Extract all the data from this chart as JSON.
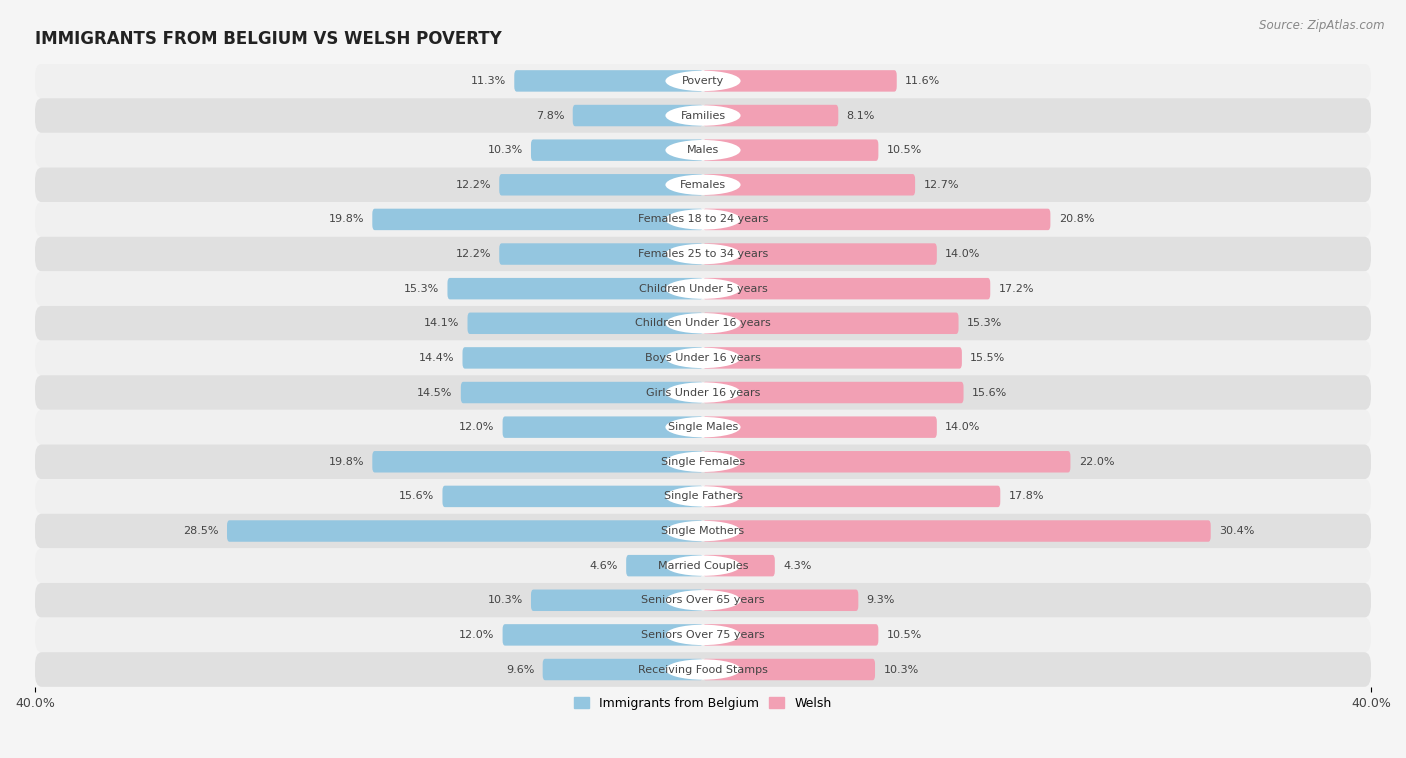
{
  "title": "IMMIGRANTS FROM BELGIUM VS WELSH POVERTY",
  "source": "Source: ZipAtlas.com",
  "categories": [
    "Poverty",
    "Families",
    "Males",
    "Females",
    "Females 18 to 24 years",
    "Females 25 to 34 years",
    "Children Under 5 years",
    "Children Under 16 years",
    "Boys Under 16 years",
    "Girls Under 16 years",
    "Single Males",
    "Single Females",
    "Single Fathers",
    "Single Mothers",
    "Married Couples",
    "Seniors Over 65 years",
    "Seniors Over 75 years",
    "Receiving Food Stamps"
  ],
  "belgium_values": [
    11.3,
    7.8,
    10.3,
    12.2,
    19.8,
    12.2,
    15.3,
    14.1,
    14.4,
    14.5,
    12.0,
    19.8,
    15.6,
    28.5,
    4.6,
    10.3,
    12.0,
    9.6
  ],
  "welsh_values": [
    11.6,
    8.1,
    10.5,
    12.7,
    20.8,
    14.0,
    17.2,
    15.3,
    15.5,
    15.6,
    14.0,
    22.0,
    17.8,
    30.4,
    4.3,
    9.3,
    10.5,
    10.3
  ],
  "belgium_color": "#94C6E0",
  "welsh_color": "#F2A0B4",
  "row_color_even": "#f0f0f0",
  "row_color_odd": "#e0e0e0",
  "background_color": "#f5f5f5",
  "axis_limit": 40.0,
  "label_fontsize": 8.0,
  "value_fontsize": 8.0,
  "title_fontsize": 12,
  "bar_height": 0.62,
  "legend_labels": [
    "Immigrants from Belgium",
    "Welsh"
  ]
}
